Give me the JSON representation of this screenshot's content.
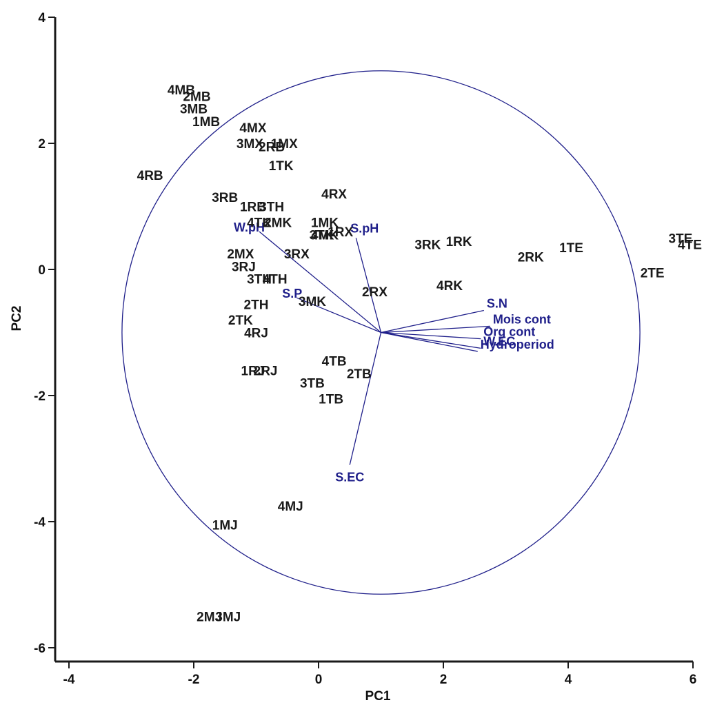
{
  "chart_data": {
    "type": "scatter",
    "title": "",
    "xlabel": "PC1",
    "ylabel": "PC2",
    "xlim": [
      -4,
      6
    ],
    "ylim": [
      -6,
      4
    ],
    "x_ticks": [
      -4,
      -2,
      0,
      2,
      4,
      6
    ],
    "y_ticks": [
      -6,
      -4,
      -2,
      0,
      2,
      4
    ],
    "grid": false,
    "colors": {
      "sites": "#1a1a1a",
      "variables": "#1f1f8a",
      "axes": "#1a1a1a"
    },
    "correlation_circle": {
      "center": [
        1.0,
        -1.0
      ],
      "radius": 4.15
    },
    "vector_origin": [
      1.0,
      -1.0
    ],
    "sites": [
      {
        "label": "4MB",
        "x": -2.2,
        "y": 2.85
      },
      {
        "label": "2MB",
        "x": -1.95,
        "y": 2.75
      },
      {
        "label": "3MB",
        "x": -2.0,
        "y": 2.55
      },
      {
        "label": "1MB",
        "x": -1.8,
        "y": 2.35
      },
      {
        "label": "4MX",
        "x": -1.05,
        "y": 2.25
      },
      {
        "label": "3MX",
        "x": -1.1,
        "y": 2.0
      },
      {
        "label": "1MX",
        "x": -0.55,
        "y": 2.0
      },
      {
        "label": "2RB",
        "x": -0.75,
        "y": 1.95
      },
      {
        "label": "1TK",
        "x": -0.6,
        "y": 1.65
      },
      {
        "label": "4RB",
        "x": -2.7,
        "y": 1.5
      },
      {
        "label": "4RX",
        "x": 0.25,
        "y": 1.2
      },
      {
        "label": "3RB",
        "x": -1.5,
        "y": 1.15
      },
      {
        "label": "1RB",
        "x": -1.05,
        "y": 1.0
      },
      {
        "label": "3TH",
        "x": -0.75,
        "y": 1.0
      },
      {
        "label": "4TK",
        "x": -0.95,
        "y": 0.75
      },
      {
        "label": "2MK",
        "x": -0.65,
        "y": 0.75
      },
      {
        "label": "1MK",
        "x": 0.1,
        "y": 0.75
      },
      {
        "label": "1RX",
        "x": 0.35,
        "y": 0.6
      },
      {
        "label": "3TK",
        "x": 0.05,
        "y": 0.55
      },
      {
        "label": "4MK",
        "x": 0.1,
        "y": 0.55
      },
      {
        "label": "2MX",
        "x": -1.25,
        "y": 0.25
      },
      {
        "label": "3RX",
        "x": -0.35,
        "y": 0.25
      },
      {
        "label": "3RK",
        "x": 1.75,
        "y": 0.4
      },
      {
        "label": "1RK",
        "x": 2.25,
        "y": 0.45
      },
      {
        "label": "2RK",
        "x": 3.4,
        "y": 0.2
      },
      {
        "label": "1TE",
        "x": 4.05,
        "y": 0.35
      },
      {
        "label": "3TE",
        "x": 5.8,
        "y": 0.5
      },
      {
        "label": "4TE",
        "x": 5.95,
        "y": 0.4
      },
      {
        "label": "2TE",
        "x": 5.35,
        "y": -0.05
      },
      {
        "label": "3RJ",
        "x": -1.2,
        "y": 0.05
      },
      {
        "label": "3TH",
        "x": -0.95,
        "y": -0.15
      },
      {
        "label": "4TH",
        "x": -0.7,
        "y": -0.15
      },
      {
        "label": "2RX",
        "x": 0.9,
        "y": -0.35
      },
      {
        "label": "4RK",
        "x": 2.1,
        "y": -0.25
      },
      {
        "label": "2TH",
        "x": -1.0,
        "y": -0.55
      },
      {
        "label": "3MK",
        "x": -0.1,
        "y": -0.5
      },
      {
        "label": "2TK",
        "x": -1.25,
        "y": -0.8
      },
      {
        "label": "4RJ",
        "x": -1.0,
        "y": -1.0
      },
      {
        "label": "1RJ",
        "x": -1.05,
        "y": -1.6
      },
      {
        "label": "2RJ",
        "x": -0.85,
        "y": -1.6
      },
      {
        "label": "4TB",
        "x": 0.25,
        "y": -1.45
      },
      {
        "label": "2TB",
        "x": 0.65,
        "y": -1.65
      },
      {
        "label": "3TB",
        "x": -0.1,
        "y": -1.8
      },
      {
        "label": "1TB",
        "x": 0.2,
        "y": -2.05
      },
      {
        "label": "4MJ",
        "x": -0.45,
        "y": -3.75
      },
      {
        "label": "1MJ",
        "x": -1.5,
        "y": -4.05
      },
      {
        "label": "2MJ",
        "x": -1.75,
        "y": -5.5
      },
      {
        "label": "3MJ",
        "x": -1.45,
        "y": -5.5
      }
    ],
    "variables": [
      {
        "label": "S.pH",
        "x": 0.6,
        "y": 0.5
      },
      {
        "label": "W.pH",
        "x": -0.95,
        "y": 0.6
      },
      {
        "label": "S.P",
        "x": -0.35,
        "y": -0.45
      },
      {
        "label": "S.N",
        "x": 2.65,
        "y": -0.65
      },
      {
        "label": "Mois cont",
        "x": 2.75,
        "y": -0.9
      },
      {
        "label": "Org cont",
        "x": 2.6,
        "y": -1.1
      },
      {
        "label": "W.EC",
        "x": 2.6,
        "y": -1.25
      },
      {
        "label": "Hydroperiod",
        "x": 2.55,
        "y": -1.3
      },
      {
        "label": "S.EC",
        "x": 0.5,
        "y": -3.1
      }
    ]
  }
}
